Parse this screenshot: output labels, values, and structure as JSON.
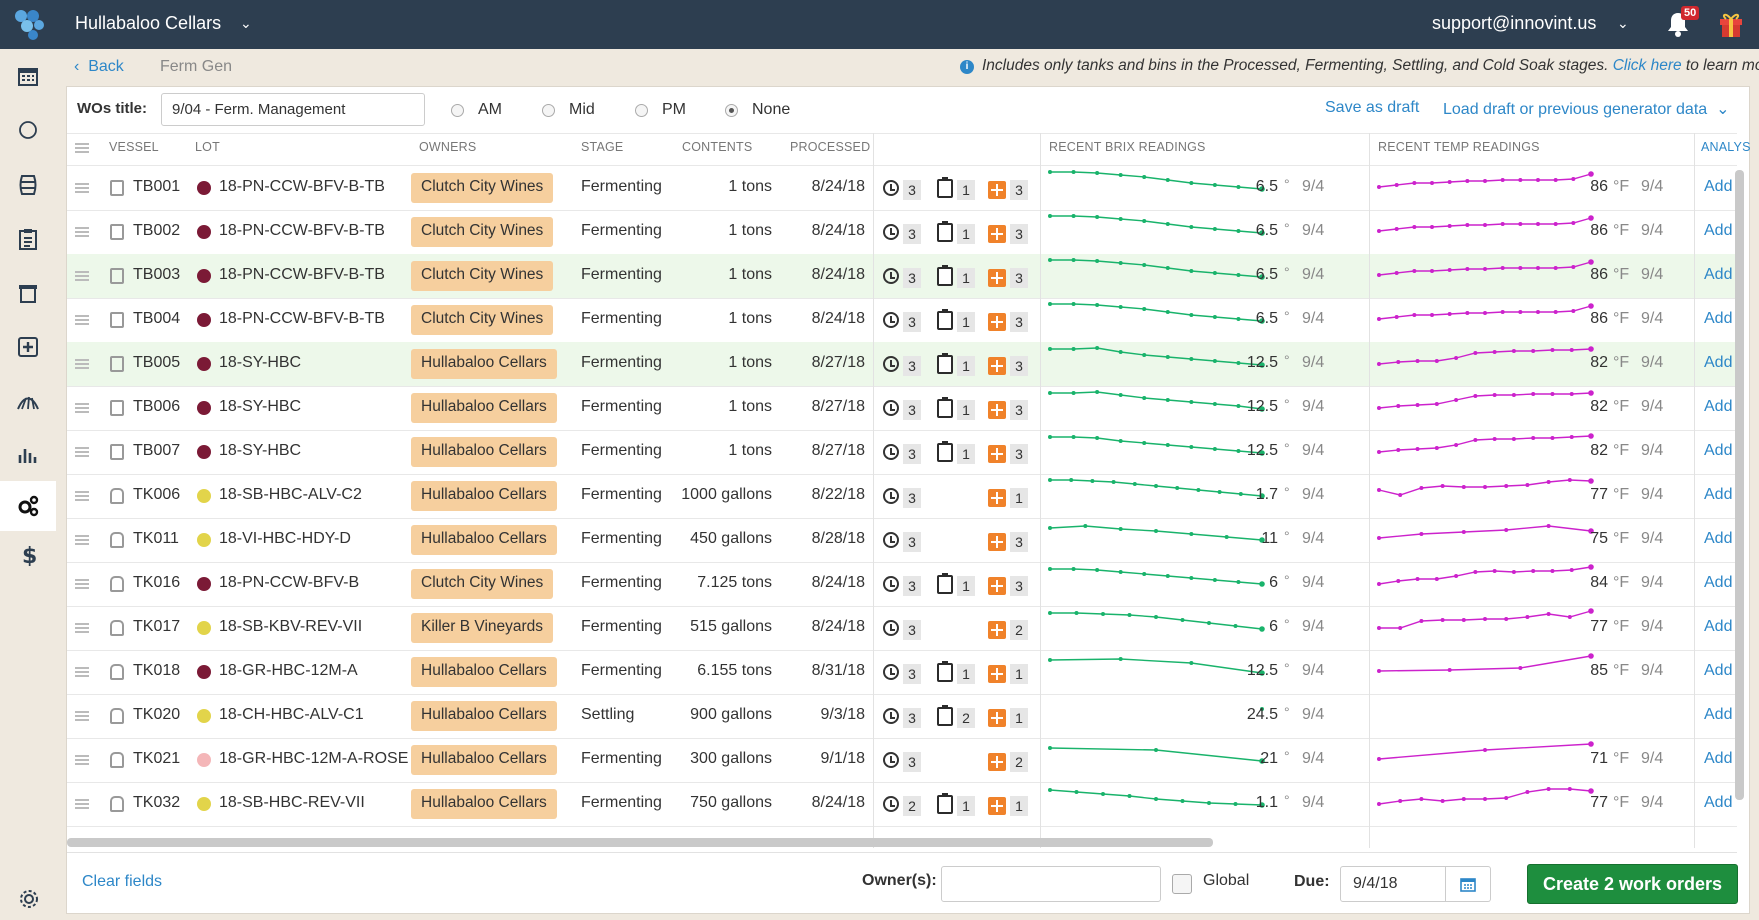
{
  "topbar": {
    "winery": "Hullabaloo Cellars",
    "email": "support@innovint.us",
    "notifications": "50"
  },
  "breadcrumb": {
    "back": "Back",
    "current": "Ferm Gen"
  },
  "info": {
    "text": "Includes only tanks and bins in the Processed, Fermenting, Settling, and Cold Soak stages.",
    "link": "Click here",
    "suffix": " to learn more"
  },
  "form": {
    "wos_label": "WOs title:",
    "wos_value": "9/04 - Ferm. Management",
    "radios": [
      {
        "label": "AM",
        "selected": false
      },
      {
        "label": "Mid",
        "selected": false
      },
      {
        "label": "PM",
        "selected": false
      },
      {
        "label": "None",
        "selected": true
      }
    ],
    "save_draft": "Save as draft",
    "load_draft": "Load draft or previous generator data"
  },
  "columns": {
    "vessel": "VESSEL",
    "lot": "LOT",
    "owners": "OWNERS",
    "stage": "STAGE",
    "contents": "CONTENTS",
    "processed": "PROCESSED",
    "brix": "RECENT BRIX READINGS",
    "temp": "RECENT TEMP READINGS",
    "analysis": "ANALYS"
  },
  "rows": [
    {
      "vessel": "TB001",
      "kind": "tb",
      "lot": "18-PN-CCW-BFV-B-TB",
      "lot_color": "#7b1a36",
      "owner": "Clutch City Wines",
      "stage": "Fermenting",
      "contents": "1 tons",
      "processed": "8/24/18",
      "hist": "3",
      "clip": "1",
      "plus": "3",
      "brix": "6.5",
      "brix_unit": "°",
      "brix_date": "9/4",
      "temp": "86",
      "temp_unit": "°F",
      "temp_date": "9/4",
      "add": "Add",
      "hl": false
    },
    {
      "vessel": "TB002",
      "kind": "tb",
      "lot": "18-PN-CCW-BFV-B-TB",
      "lot_color": "#7b1a36",
      "owner": "Clutch City Wines",
      "stage": "Fermenting",
      "contents": "1 tons",
      "processed": "8/24/18",
      "hist": "3",
      "clip": "1",
      "plus": "3",
      "brix": "6.5",
      "brix_unit": "°",
      "brix_date": "9/4",
      "temp": "86",
      "temp_unit": "°F",
      "temp_date": "9/4",
      "add": "Add",
      "hl": false
    },
    {
      "vessel": "TB003",
      "kind": "tb",
      "lot": "18-PN-CCW-BFV-B-TB",
      "lot_color": "#7b1a36",
      "owner": "Clutch City Wines",
      "stage": "Fermenting",
      "contents": "1 tons",
      "processed": "8/24/18",
      "hist": "3",
      "clip": "1",
      "plus": "3",
      "brix": "6.5",
      "brix_unit": "°",
      "brix_date": "9/4",
      "temp": "86",
      "temp_unit": "°F",
      "temp_date": "9/4",
      "add": "Add",
      "hl": true
    },
    {
      "vessel": "TB004",
      "kind": "tb",
      "lot": "18-PN-CCW-BFV-B-TB",
      "lot_color": "#7b1a36",
      "owner": "Clutch City Wines",
      "stage": "Fermenting",
      "contents": "1 tons",
      "processed": "8/24/18",
      "hist": "3",
      "clip": "1",
      "plus": "3",
      "brix": "6.5",
      "brix_unit": "°",
      "brix_date": "9/4",
      "temp": "86",
      "temp_unit": "°F",
      "temp_date": "9/4",
      "add": "Add",
      "hl": false
    },
    {
      "vessel": "TB005",
      "kind": "tb",
      "lot": "18-SY-HBC",
      "lot_color": "#7b1a36",
      "owner": "Hullabaloo Cellars",
      "stage": "Fermenting",
      "contents": "1 tons",
      "processed": "8/27/18",
      "hist": "3",
      "clip": "1",
      "plus": "3",
      "brix": "12.5",
      "brix_unit": "°",
      "brix_date": "9/4",
      "temp": "82",
      "temp_unit": "°F",
      "temp_date": "9/4",
      "add": "Add",
      "hl": true
    },
    {
      "vessel": "TB006",
      "kind": "tb",
      "lot": "18-SY-HBC",
      "lot_color": "#7b1a36",
      "owner": "Hullabaloo Cellars",
      "stage": "Fermenting",
      "contents": "1 tons",
      "processed": "8/27/18",
      "hist": "3",
      "clip": "1",
      "plus": "3",
      "brix": "12.5",
      "brix_unit": "°",
      "brix_date": "9/4",
      "temp": "82",
      "temp_unit": "°F",
      "temp_date": "9/4",
      "add": "Add",
      "hl": false
    },
    {
      "vessel": "TB007",
      "kind": "tb",
      "lot": "18-SY-HBC",
      "lot_color": "#7b1a36",
      "owner": "Hullabaloo Cellars",
      "stage": "Fermenting",
      "contents": "1 tons",
      "processed": "8/27/18",
      "hist": "3",
      "clip": "1",
      "plus": "3",
      "brix": "12.5",
      "brix_unit": "°",
      "brix_date": "9/4",
      "temp": "82",
      "temp_unit": "°F",
      "temp_date": "9/4",
      "add": "Add",
      "hl": false
    },
    {
      "vessel": "TK006",
      "kind": "tk",
      "lot": "18-SB-HBC-ALV-C2",
      "lot_color": "#e2d44a",
      "owner": "Hullabaloo Cellars",
      "stage": "Fermenting",
      "contents": "1000 gallons",
      "processed": "8/22/18",
      "hist": "3",
      "clip": "",
      "plus": "1",
      "brix": "1.7",
      "brix_unit": "°",
      "brix_date": "9/4",
      "temp": "77",
      "temp_unit": "°F",
      "temp_date": "9/4",
      "add": "Add",
      "hl": false
    },
    {
      "vessel": "TK011",
      "kind": "tk",
      "lot": "18-VI-HBC-HDY-D",
      "lot_color": "#e2d44a",
      "owner": "Hullabaloo Cellars",
      "stage": "Fermenting",
      "contents": "450 gallons",
      "processed": "8/28/18",
      "hist": "3",
      "clip": "",
      "plus": "3",
      "brix": "11",
      "brix_unit": "°",
      "brix_date": "9/4",
      "temp": "75",
      "temp_unit": "°F",
      "temp_date": "9/4",
      "add": "Add",
      "hl": false
    },
    {
      "vessel": "TK016",
      "kind": "tk",
      "lot": "18-PN-CCW-BFV-B",
      "lot_color": "#7b1a36",
      "owner": "Clutch City Wines",
      "stage": "Fermenting",
      "contents": "7.125 tons",
      "processed": "8/24/18",
      "hist": "3",
      "clip": "1",
      "plus": "3",
      "brix": "6",
      "brix_unit": "°",
      "brix_date": "9/4",
      "temp": "84",
      "temp_unit": "°F",
      "temp_date": "9/4",
      "add": "Add",
      "hl": false
    },
    {
      "vessel": "TK017",
      "kind": "tk",
      "lot": "18-SB-KBV-REV-VII",
      "lot_color": "#e2d44a",
      "owner": "Killer B Vineyards",
      "stage": "Fermenting",
      "contents": "515 gallons",
      "processed": "8/24/18",
      "hist": "3",
      "clip": "",
      "plus": "2",
      "brix": "6",
      "brix_unit": "°",
      "brix_date": "9/4",
      "temp": "77",
      "temp_unit": "°F",
      "temp_date": "9/4",
      "add": "Add",
      "hl": false
    },
    {
      "vessel": "TK018",
      "kind": "tk",
      "lot": "18-GR-HBC-12M-A",
      "lot_color": "#7b1a36",
      "owner": "Hullabaloo Cellars",
      "stage": "Fermenting",
      "contents": "6.155 tons",
      "processed": "8/31/18",
      "hist": "3",
      "clip": "1",
      "plus": "1",
      "brix": "12.5",
      "brix_unit": "°",
      "brix_date": "9/4",
      "temp": "85",
      "temp_unit": "°F",
      "temp_date": "9/4",
      "add": "Add",
      "hl": false
    },
    {
      "vessel": "TK020",
      "kind": "tk",
      "lot": "18-CH-HBC-ALV-C1",
      "lot_color": "#e2d44a",
      "owner": "Hullabaloo Cellars",
      "stage": "Settling",
      "contents": "900 gallons",
      "processed": "9/3/18",
      "hist": "3",
      "clip": "2",
      "plus": "1",
      "brix": "24.5",
      "brix_unit": "°",
      "brix_date": "9/4",
      "temp": "",
      "temp_unit": "",
      "temp_date": "",
      "add": "Add",
      "hl": false
    },
    {
      "vessel": "TK021",
      "kind": "tk",
      "lot": "18-GR-HBC-12M-A-ROSE",
      "lot_color": "#f4b6b8",
      "owner": "Hullabaloo Cellars",
      "stage": "Fermenting",
      "contents": "300 gallons",
      "processed": "9/1/18",
      "hist": "3",
      "clip": "",
      "plus": "2",
      "brix": "21",
      "brix_unit": "°",
      "brix_date": "9/4",
      "temp": "71",
      "temp_unit": "°F",
      "temp_date": "9/4",
      "add": "Add",
      "hl": false
    },
    {
      "vessel": "TK032",
      "kind": "tk",
      "lot": "18-SB-HBC-REV-VII",
      "lot_color": "#e2d44a",
      "owner": "Hullabaloo Cellars",
      "stage": "Fermenting",
      "contents": "750 gallons",
      "processed": "8/24/18",
      "hist": "2",
      "clip": "1",
      "plus": "1",
      "brix": "1.1",
      "brix_unit": "°",
      "brix_date": "9/4",
      "temp": "77",
      "temp_unit": "°F",
      "temp_date": "9/4",
      "add": "Add",
      "hl": false
    }
  ],
  "colors": {
    "brix_line": "#19b36b",
    "temp_line": "#cc22cc",
    "accent": "#2d87c8",
    "create_button": "#1e8e3e",
    "topbar": "#2d3e50",
    "owner_badge": "#f6cf9e"
  },
  "footer": {
    "clear": "Clear fields",
    "owners_label": "Owner(s):",
    "owners_value": "",
    "global_label": "Global",
    "due_label": "Due:",
    "due_value": "9/4/18",
    "create": "Create 2 work orders"
  }
}
